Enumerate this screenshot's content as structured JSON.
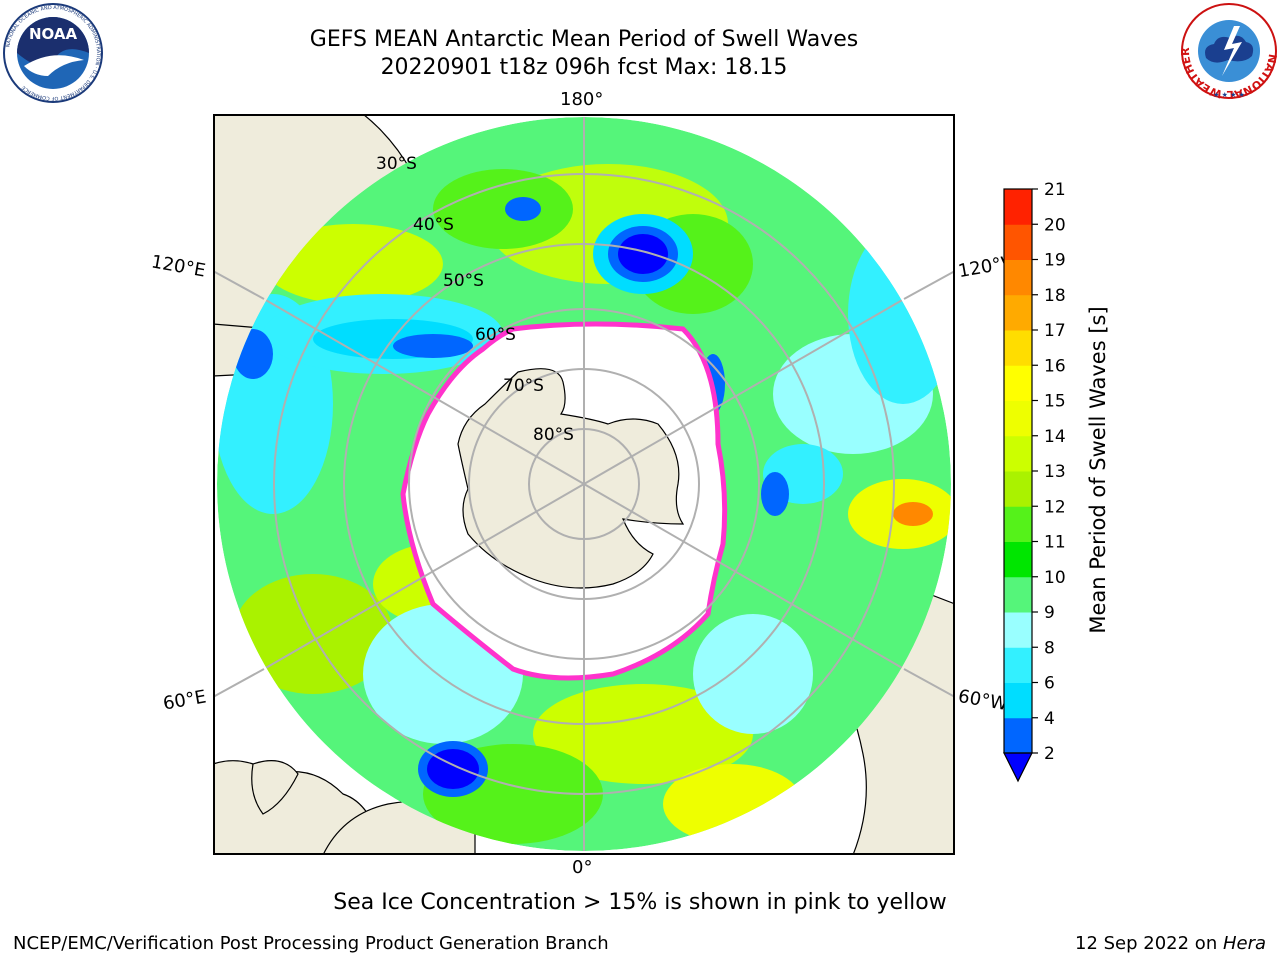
{
  "header": {
    "title_line1": "GEFS MEAN Antarctic Mean Period of Swell Waves",
    "title_line2": "20220901 t18z 096h fcst   Max: 18.15"
  },
  "logos": {
    "left": {
      "icon": "noaa-logo",
      "text": "NOAA"
    },
    "right": {
      "icon": "national-weather-service-logo",
      "text": "NATIONAL WEATHER SERVICE"
    }
  },
  "map": {
    "projection": "south-polar-stereographic",
    "longitude_labels": {
      "top": "180°",
      "bottom": "0°",
      "upper_left": "120°E",
      "upper_right": "120°W",
      "lower_left": "60°E",
      "lower_right": "60°W"
    },
    "latitude_labels": [
      "30°S",
      "40°S",
      "50°S",
      "60°S",
      "70°S",
      "80°S"
    ],
    "colors": {
      "land": "#efecdc",
      "ice": "#ffffff",
      "ice_edge": "#ff33cc",
      "grid": "#b0b0b0",
      "coast": "#000000"
    }
  },
  "colorbar": {
    "label": "Mean Period of Swell Waves [s]",
    "ticks": [
      "2",
      "4",
      "6",
      "8",
      "9",
      "10",
      "11",
      "12",
      "13",
      "14",
      "15",
      "16",
      "17",
      "18",
      "19",
      "20",
      "21"
    ],
    "colors": [
      "#0066ff",
      "#00ddff",
      "#33f0ff",
      "#99ffff",
      "#55f57a",
      "#00e600",
      "#55f21a",
      "#aaf200",
      "#ccff00",
      "#eeff00",
      "#ffff00",
      "#ffdd00",
      "#ffaa00",
      "#ff8800",
      "#ff5500",
      "#ff2200"
    ],
    "under_color": "#0000ff"
  },
  "caption": "Sea Ice Concentration > 15% is shown in pink to yellow",
  "footer": {
    "left": "NCEP/EMC/Verification Post Processing Product Generation Branch",
    "date": "12 Sep 2022 on ",
    "host": "Hera"
  }
}
